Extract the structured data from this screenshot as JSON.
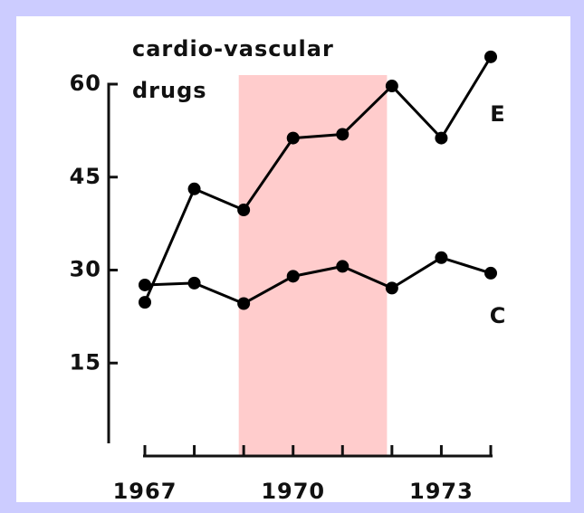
{
  "chart_data": {
    "type": "line",
    "title": [
      "cardio-vascular",
      "drugs"
    ],
    "x": [
      1967,
      1968,
      1969,
      1970,
      1971,
      1972,
      1973,
      1974
    ],
    "series": [
      {
        "name": "E",
        "color": "#000000",
        "values": [
          24.8,
          43.1,
          39.7,
          51.3,
          51.9,
          59.7,
          51.3,
          64.4
        ]
      },
      {
        "name": "C",
        "color": "#000000",
        "values": [
          27.6,
          27.9,
          24.6,
          29.0,
          30.6,
          27.1,
          32.0,
          29.5
        ]
      }
    ],
    "xlim": [
      1967,
      1974
    ],
    "xticks": [
      1967,
      1970,
      1973
    ],
    "xminor_ticks": [
      1968,
      1969,
      1971,
      1972,
      1974
    ],
    "ylim": [
      0,
      60
    ],
    "yticks": [
      15,
      30,
      45,
      60
    ],
    "highlight_x": [
      1968.9,
      1971.9
    ],
    "highlight_color": "#ffcccc",
    "frame_color": "#ccccff",
    "grid": false
  }
}
